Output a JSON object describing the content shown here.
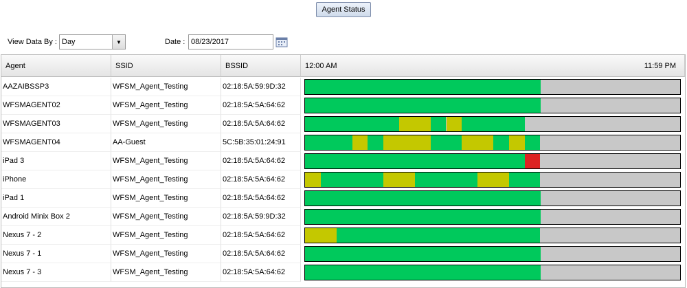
{
  "header": {
    "button": "Agent Status"
  },
  "controls": {
    "view_label": "View Data By :",
    "view_value": "Day",
    "date_label": "Date :",
    "date_value": "08/23/2017"
  },
  "table": {
    "columns": [
      "Agent",
      "SSID",
      "BSSID"
    ],
    "time_start_label": "12:00 AM",
    "time_end_label": "11:59 PM",
    "xlim": [
      0,
      24
    ],
    "empty_color": "#c8c8c8",
    "rows": [
      {
        "agent": "AAZAIBSSP3",
        "ssid": "WFSM_Agent_Testing",
        "bssid": "02:18:5A:59:9D:32",
        "segments": [
          {
            "start": 0,
            "end": 15,
            "color": "#00c95c"
          }
        ]
      },
      {
        "agent": "WFSMAGENT02",
        "ssid": "WFSM_Agent_Testing",
        "bssid": "02:18:5A:5A:64:62",
        "segments": [
          {
            "start": 0,
            "end": 15,
            "color": "#00c95c"
          }
        ]
      },
      {
        "agent": "WFSMAGENT03",
        "ssid": "WFSM_Agent_Testing",
        "bssid": "02:18:5A:5A:64:62",
        "segments": [
          {
            "start": 0,
            "end": 6,
            "color": "#00c95c"
          },
          {
            "start": 6,
            "end": 8,
            "color": "#c4c800"
          },
          {
            "start": 8,
            "end": 9,
            "color": "#00c95c"
          },
          {
            "start": 9,
            "end": 10,
            "color": "#c4c800"
          },
          {
            "start": 10,
            "end": 14,
            "color": "#00c95c"
          }
        ]
      },
      {
        "agent": "WFSMAGENT04",
        "ssid": "AA-Guest",
        "bssid": "5C:5B:35:01:24:91",
        "segments": [
          {
            "start": 0,
            "end": 3,
            "color": "#00c95c"
          },
          {
            "start": 3,
            "end": 4,
            "color": "#c4c800"
          },
          {
            "start": 4,
            "end": 5,
            "color": "#00c95c"
          },
          {
            "start": 5,
            "end": 8,
            "color": "#c4c800"
          },
          {
            "start": 8,
            "end": 10,
            "color": "#00c95c"
          },
          {
            "start": 10,
            "end": 12,
            "color": "#c4c800"
          },
          {
            "start": 12,
            "end": 13,
            "color": "#00c95c"
          },
          {
            "start": 13,
            "end": 14,
            "color": "#c4c800"
          },
          {
            "start": 14,
            "end": 15,
            "color": "#00c95c"
          }
        ]
      },
      {
        "agent": "iPad 3",
        "ssid": "WFSM_Agent_Testing",
        "bssid": "02:18:5A:5A:64:62",
        "segments": [
          {
            "start": 0,
            "end": 14,
            "color": "#00c95c"
          },
          {
            "start": 14,
            "end": 15,
            "color": "#dd2222"
          }
        ]
      },
      {
        "agent": "iPhone",
        "ssid": "WFSM_Agent_Testing",
        "bssid": "02:18:5A:5A:64:62",
        "segments": [
          {
            "start": 0,
            "end": 1,
            "color": "#c4c800"
          },
          {
            "start": 1,
            "end": 5,
            "color": "#00c95c"
          },
          {
            "start": 5,
            "end": 7,
            "color": "#c4c800"
          },
          {
            "start": 7,
            "end": 11,
            "color": "#00c95c"
          },
          {
            "start": 11,
            "end": 13,
            "color": "#c4c800"
          },
          {
            "start": 13,
            "end": 15,
            "color": "#00c95c"
          }
        ]
      },
      {
        "agent": "iPad 1",
        "ssid": "WFSM_Agent_Testing",
        "bssid": "02:18:5A:5A:64:62",
        "segments": [
          {
            "start": 0,
            "end": 15,
            "color": "#00c95c"
          }
        ]
      },
      {
        "agent": "Android Minix Box 2",
        "ssid": "WFSM_Agent_Testing",
        "bssid": "02:18:5A:59:9D:32",
        "segments": [
          {
            "start": 0,
            "end": 15,
            "color": "#00c95c"
          }
        ]
      },
      {
        "agent": "Nexus 7 - 2",
        "ssid": "WFSM_Agent_Testing",
        "bssid": "02:18:5A:5A:64:62",
        "segments": [
          {
            "start": 0,
            "end": 2,
            "color": "#c4c800"
          },
          {
            "start": 2,
            "end": 15,
            "color": "#00c95c"
          }
        ]
      },
      {
        "agent": "Nexus 7 - 1",
        "ssid": "WFSM_Agent_Testing",
        "bssid": "02:18:5A:5A:64:62",
        "segments": [
          {
            "start": 0,
            "end": 15,
            "color": "#00c95c"
          }
        ]
      },
      {
        "agent": "Nexus 7 - 3",
        "ssid": "WFSM_Agent_Testing",
        "bssid": "02:18:5A:5A:64:62",
        "segments": [
          {
            "start": 0,
            "end": 15,
            "color": "#00c95c"
          }
        ]
      }
    ]
  }
}
